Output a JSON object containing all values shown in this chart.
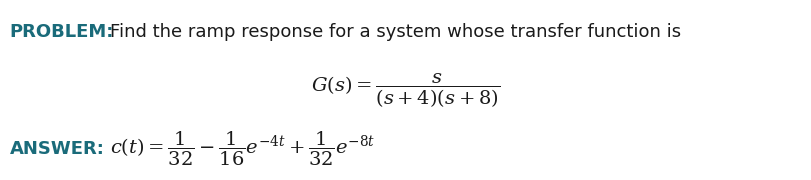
{
  "background_color": "#ffffff",
  "problem_label": "PROBLEM:",
  "problem_text": "Find the ramp response for a system whose transfer function is",
  "answer_label": "ANSWER:",
  "label_color": "#1a6b7a",
  "text_color": "#1a1a1a",
  "math_color": "#1a1a1a",
  "problem_fontsize": 13,
  "answer_fontsize": 13,
  "tf_fontsize": 14,
  "answer_math_fontsize": 14
}
